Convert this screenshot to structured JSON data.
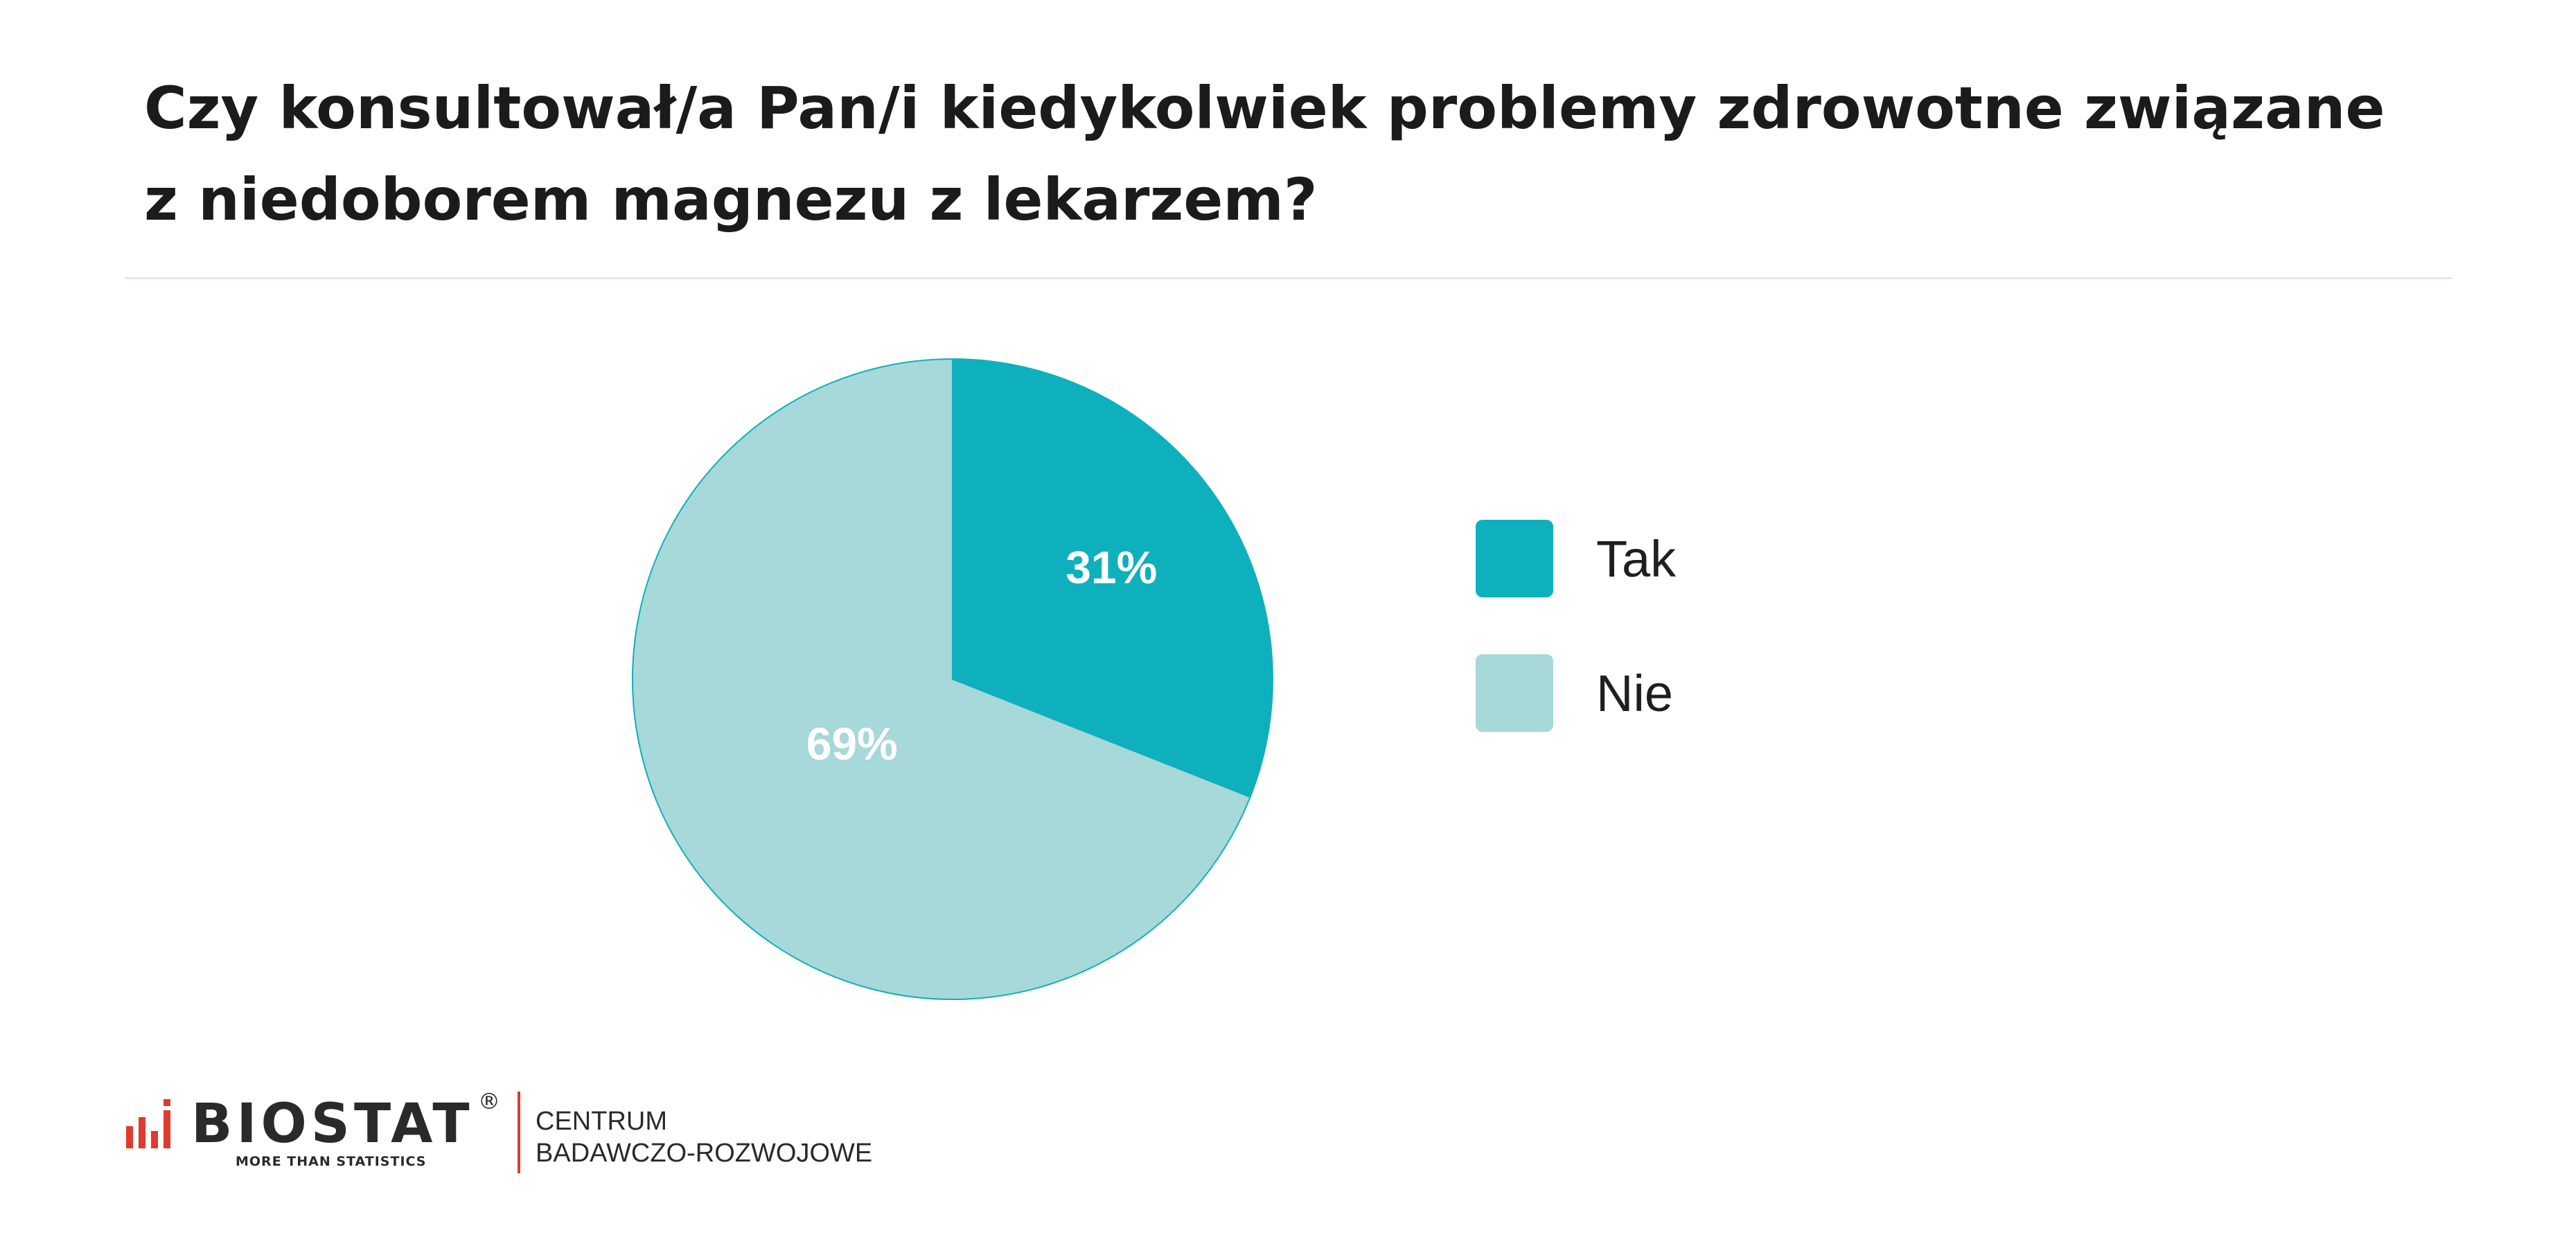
{
  "title_lines": [
    "Czy konsultował/a Pan/i kiedykolwiek problemy zdrowotne związane",
    "z niedoborem magnezu z lekarzem?"
  ],
  "chart_data": {
    "type": "pie",
    "title": "Czy konsultował/a Pan/i kiedykolwiek problemy zdrowotne związane z niedoborem magnezu z lekarzem?",
    "categories": [
      "Tak",
      "Nie"
    ],
    "values": [
      31,
      69
    ],
    "data_labels": [
      "31%",
      "69%"
    ],
    "colors": [
      "#0fb0bd",
      "#a7d8da"
    ],
    "legend_position": "right"
  },
  "footer": {
    "brand": "BIOSTAT",
    "registered": "®",
    "tagline": "MORE THAN STATISTICS",
    "centre_lines": [
      "CENTRUM",
      "BADAWCZO-ROZWOJOWE"
    ],
    "accent_color": "#e03a2f"
  }
}
